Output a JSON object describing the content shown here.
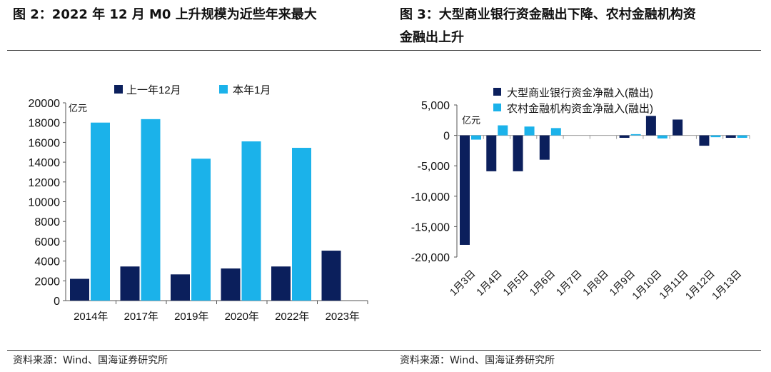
{
  "left": {
    "title": "图 2：2022 年 12 月 M0 上升规模为近些年来最大",
    "source": "资料来源：Wind、国海证券研究所"
  },
  "right": {
    "title_line1": "图 3：大型商业银行资金融出下降、农村金融机构资",
    "title_line2": "金融出上升",
    "source": "资料来源：Wind、国海证券研究所"
  },
  "colors": {
    "dark": "#0b1f5c",
    "light": "#1bb2ea"
  },
  "chart_data": [
    {
      "type": "bar",
      "unit": "亿元",
      "categories": [
        "2014年",
        "2017年",
        "2019年",
        "2020年",
        "2022年",
        "2023年"
      ],
      "series": [
        {
          "name": "上一年12月",
          "values": [
            2200,
            3450,
            2650,
            3250,
            3450,
            5050
          ]
        },
        {
          "name": "本年1月",
          "values": [
            18000,
            18350,
            14350,
            16100,
            15450,
            null
          ]
        }
      ],
      "yticks": [
        0,
        2000,
        4000,
        6000,
        8000,
        10000,
        12000,
        14000,
        16000,
        18000,
        20000
      ],
      "ylim": [
        0,
        20000
      ],
      "legend": "top"
    },
    {
      "type": "bar",
      "unit": "亿元",
      "categories": [
        "1月3日",
        "1月4日",
        "1月5日",
        "1月6日",
        "1月7日",
        "1月8日",
        "1月9日",
        "1月10日",
        "1月11日",
        "1月12日",
        "1月13日"
      ],
      "series": [
        {
          "name": "大型商业银行资金净融入(融出)",
          "values": [
            -18000,
            -5900,
            -5900,
            -4000,
            0,
            0,
            -400,
            3200,
            2600,
            -1700,
            -400
          ]
        },
        {
          "name": "农村金融机构资金净融入(融出)",
          "values": [
            -700,
            1650,
            1450,
            1200,
            0,
            0,
            200,
            -500,
            0,
            -300,
            -400
          ]
        }
      ],
      "yticks": [
        "5,000",
        "0",
        "-5,000",
        "-10,000",
        "-15,000",
        "-20,000"
      ],
      "ytick_values": [
        5000,
        0,
        -5000,
        -10000,
        -15000,
        -20000
      ],
      "ylim": [
        -20000,
        5000
      ],
      "legend": "top"
    }
  ]
}
